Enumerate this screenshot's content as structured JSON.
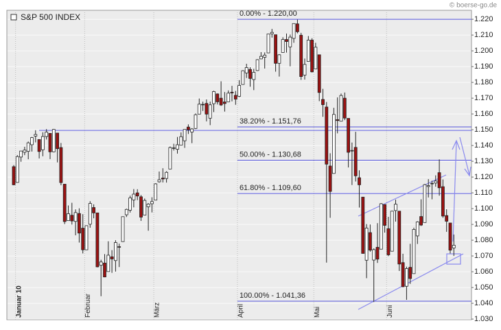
{
  "chart_data": {
    "type": "candlestick",
    "title": "S&P 500 INDEX",
    "source": "© boerse-go.de",
    "categories": [
      null,
      "Januar 10",
      null,
      null,
      null,
      null,
      null,
      null,
      null,
      null,
      null,
      null,
      null,
      null,
      null,
      null,
      null,
      null,
      null,
      null,
      "Februar",
      null,
      null,
      null,
      null,
      null,
      null,
      null,
      null,
      null,
      null,
      null,
      null,
      null,
      null,
      null,
      null,
      null,
      null,
      "März",
      null,
      null,
      null,
      null,
      null,
      null,
      null,
      null,
      null,
      null,
      null,
      null,
      null,
      null,
      null,
      null,
      null,
      null,
      null,
      null,
      null,
      null,
      "April",
      null,
      null,
      null,
      null,
      null,
      null,
      null,
      null,
      null,
      null,
      null,
      null,
      null,
      null,
      null,
      null,
      null,
      null,
      null,
      null,
      "Mai",
      null,
      null,
      null,
      null,
      null,
      null,
      null,
      null,
      null,
      null,
      null,
      null,
      null,
      null,
      null,
      null,
      null,
      null,
      null,
      "Juni",
      null,
      null,
      null,
      null,
      null,
      null,
      null,
      null,
      null,
      null,
      null,
      null,
      null,
      null,
      null,
      null,
      null,
      null
    ],
    "open": [
      1126.6,
      1116.6,
      1132.7,
      1135.7,
      1136.3,
      1140.5,
      1145.96,
      1143.8,
      1137.3,
      1145.7,
      1147.7,
      1136.0,
      1147.9,
      1138.7,
      1115.5,
      1092.4,
      1095.8,
      1091.9,
      1096.9,
      1087.6,
      1073.9,
      1090.1,
      1100.7,
      1097.3,
      1064.1,
      1065.5,
      1060.1,
      1069.5,
      1067.1,
      1075.9,
      1079.1,
      1096.1,
      1099.0,
      1105.5,
      1110.0,
      1107.5,
      1095.9,
      1101.2,
      1103.1,
      1105.4,
      1117.0,
      1119.4,
      1119.1,
      1125.1,
      1138.4,
      1137.6,
      1140.2,
      1143.0,
      1151.7,
      1148.5,
      1150.8,
      1159.9,
      1166.1,
      1166.7,
      1157.3,
      1166.5,
      1172.7,
      1170.0,
      1167.6,
      1167.7,
      1173.8,
      1171.8,
      1171.2,
      1178.7,
      1186.0,
      1188.2,
      1181.8,
      1187.5,
      1194.9,
      1195.9,
      1198.7,
      1210.8,
      1210.2,
      1192.1,
      1199.0,
      1207.2,
      1202.5,
      1207.9,
      1217.1,
      1209.9,
      1184.6,
      1193.3,
      1206.8,
      1188.6,
      1197.5,
      1169.2,
      1164.4,
      1127.0,
      1122.3,
      1156.4,
      1155.4,
      1170.0,
      1157.2,
      1136.5,
      1138.8,
      1119.6,
      1107.3,
      1067.3,
      1084.8,
      1067.4,
      1075.5,
      1074.3,
      1102.6,
      1087.3,
      1073.0,
      1098.8,
      1098.4,
      1065.8,
      1050.8,
      1062.8,
      1058.8,
      1082.7,
      1095.0,
      1091.2,
      1114.0,
      1115.98,
      1116.2,
      1122.8,
      1113.9,
      1095.6,
      1090.9,
      1075.1
    ],
    "high": [
      1127.6,
      1133.9,
      1136.6,
      1139.2,
      1142.5,
      1145.4,
      1149.7,
      1143.8,
      1148.4,
      1150.4,
      1147.8,
      1150.5,
      1147.9,
      1141.6,
      1115.5,
      1102.0,
      1103.7,
      1099.5,
      1100.2,
      1096.5,
      1089.4,
      1104.7,
      1102.7,
      1097.3,
      1067.6,
      1071.2,
      1079.3,
      1073.7,
      1080.0,
      1077.8,
      1095.0,
      1100.0,
      1108.2,
      1112.4,
      1112.3,
      1108.6,
      1106.4,
      1103.5,
      1107.2,
      1116.1,
      1123.5,
      1125.6,
      1123.7,
      1139.4,
      1141.1,
      1145.4,
      1148.3,
      1150.2,
      1153.4,
      1150.98,
      1160.3,
      1169.8,
      1167.8,
      1169.2,
      1167.8,
      1174.7,
      1173.0,
      1180.7,
      1173.9,
      1174.9,
      1177.8,
      1174.6,
      1181.4,
      1187.7,
      1191.8,
      1189.6,
      1188.6,
      1194.7,
      1199.2,
      1199.0,
      1210.7,
      1213.9,
      1210.2,
      1197.9,
      1208.6,
      1210.99,
      1210.3,
      1217.3,
      1219.8,
      1211.4,
      1195.1,
      1209.4,
      1207.99,
      1205.1,
      1197.5,
      1175.9,
      1167.6,
      1135.1,
      1163.9,
      1170.5,
      1172.9,
      1173.6,
      1157.2,
      1141.9,
      1148.7,
      1124.3,
      1107.3,
      1090.2,
      1089.95,
      1074.8,
      1090.8,
      1103.5,
      1102.6,
      1094.8,
      1098.6,
      1105.7,
      1098.4,
      1071.4,
      1063.2,
      1077.7,
      1087.9,
      1092.0,
      1105.9,
      1115.6,
      1118.7,
      1117.7,
      1121.1,
      1131.2,
      1118.5,
      1099.6,
      1090.9,
      1083.6
    ],
    "low": [
      1114.8,
      1116.6,
      1129.7,
      1133.9,
      1131.3,
      1136.2,
      1142.0,
      1131.8,
      1133.2,
      1143.8,
      1131.4,
      1135.7,
      1129.3,
      1114.8,
      1090.2,
      1092.4,
      1089.9,
      1083.1,
      1078.5,
      1071.6,
      1073.9,
      1087.9,
      1093.9,
      1062.8,
      1044.5,
      1056.5,
      1060.1,
      1059.3,
      1060.1,
      1062.97,
      1079.1,
      1094.7,
      1097.5,
      1100.8,
      1105.4,
      1092.2,
      1095.9,
      1086.0,
      1097.6,
      1105.4,
      1116.5,
      1116.6,
      1116.5,
      1125.1,
      1136.8,
      1134.9,
      1140.1,
      1138.5,
      1147.3,
      1141.5,
      1150.4,
      1159.9,
      1161.9,
      1155.3,
      1152.9,
      1161.2,
      1166.0,
      1165.1,
      1161.5,
      1167.7,
      1168.0,
      1165.8,
      1170.7,
      1178.7,
      1182.8,
      1177.3,
      1175.1,
      1187.2,
      1194.7,
      1188.8,
      1198.7,
      1208.4,
      1186.8,
      1183.7,
      1199.0,
      1198.9,
      1190.2,
      1205.1,
      1211.1,
      1181.6,
      1181.8,
      1193.3,
      1186.3,
      1188.6,
      1168.1,
      1158.2,
      1065.8,
      1094.2,
      1122.3,
      1147.7,
      1155.4,
      1156.1,
      1126.1,
      1114.96,
      1117.2,
      1100.7,
      1071.6,
      1055.9,
      1072.7,
      1040.8,
      1065.6,
      1074.3,
      1084.8,
      1069.9,
      1072.9,
      1091.8,
      1060.5,
      1050.2,
      1042.2,
      1052.3,
      1058.8,
      1077.6,
      1089.0,
      1091.2,
      1107.1,
      1105.9,
      1113.9,
      1108.2,
      1094.2,
      1085.3,
      1071.6,
      1070.0
    ],
    "close": [
      1115.1,
      1133.0,
      1136.5,
      1137.1,
      1141.7,
      1145.0,
      1147.0,
      1136.2,
      1145.7,
      1148.5,
      1136.0,
      1150.2,
      1138.0,
      1116.5,
      1091.8,
      1096.8,
      1092.2,
      1097.5,
      1084.5,
      1073.9,
      1089.2,
      1103.3,
      1097.3,
      1063.1,
      1066.2,
      1056.7,
      1070.5,
      1068.1,
      1078.5,
      1075.5,
      1094.9,
      1099.5,
      1106.8,
      1109.2,
      1108.0,
      1094.6,
      1105.2,
      1102.9,
      1104.5,
      1115.7,
      1118.3,
      1118.8,
      1123.0,
      1138.7,
      1138.5,
      1140.5,
      1145.6,
      1150.2,
      1150.0,
      1150.5,
      1159.5,
      1166.2,
      1165.8,
      1159.9,
      1165.8,
      1174.2,
      1167.7,
      1165.7,
      1166.6,
      1173.2,
      1173.3,
      1169.4,
      1178.1,
      1187.4,
      1189.4,
      1182.5,
      1186.4,
      1194.4,
      1196.5,
      1197.3,
      1210.7,
      1211.7,
      1192.1,
      1197.5,
      1207.2,
      1205.9,
      1208.7,
      1217.3,
      1212.1,
      1183.7,
      1191.4,
      1206.8,
      1186.7,
      1202.3,
      1173.6,
      1165.9,
      1128.2,
      1110.9,
      1159.7,
      1155.8,
      1171.7,
      1157.4,
      1135.7,
      1136.9,
      1120.8,
      1115.1,
      1071.6,
      1087.7,
      1073.7,
      1074.0,
      1068.0,
      1103.1,
      1089.4,
      1070.7,
      1098.4,
      1102.8,
      1064.9,
      1050.5,
      1062.0,
      1055.7,
      1086.8,
      1091.6,
      1089.6,
      1115.2,
      1114.6,
      1116.0,
      1117.5,
      1113.2,
      1095.3,
      1092.0,
      1073.7,
      1076.8
    ],
    "up_color": "#ffffff",
    "down_color": "#9b1212",
    "ylim": [
      1029.6,
      1225.7
    ],
    "yticks": [
      {
        "value": 1030,
        "label": "1.030"
      },
      {
        "value": 1040,
        "label": "1.040"
      },
      {
        "value": 1050,
        "label": "1.050"
      },
      {
        "value": 1060,
        "label": "1.060"
      },
      {
        "value": 1070,
        "label": "1.070"
      },
      {
        "value": 1080,
        "label": "1.080"
      },
      {
        "value": 1090,
        "label": "1.090"
      },
      {
        "value": 1100,
        "label": "1.100"
      },
      {
        "value": 1110,
        "label": "1.110"
      },
      {
        "value": 1120,
        "label": "1.120"
      },
      {
        "value": 1130,
        "label": "1.130"
      },
      {
        "value": 1140,
        "label": "1.140"
      },
      {
        "value": 1150,
        "label": "1.150"
      },
      {
        "value": 1160,
        "label": "1.160"
      },
      {
        "value": 1170,
        "label": "1.170"
      },
      {
        "value": 1180,
        "label": "1.180"
      },
      {
        "value": 1190,
        "label": "1.190"
      },
      {
        "value": 1200,
        "label": "1.200"
      },
      {
        "value": 1210,
        "label": "1.210"
      },
      {
        "value": 1220,
        "label": "1.220"
      }
    ],
    "grid": true,
    "fib_levels": [
      {
        "value": 1220,
        "label": "0.00% - 1.220,00"
      },
      {
        "value": 1151.76,
        "label": "38.20% - 1.151,76"
      },
      {
        "value": 1130.68,
        "label": "50.00% - 1.130,68"
      },
      {
        "value": 1109.6,
        "label": "61.80% - 1.109,60"
      },
      {
        "value": 1041.36,
        "label": "100.00% - 1.041,36"
      }
    ],
    "fib_start": 62
  }
}
